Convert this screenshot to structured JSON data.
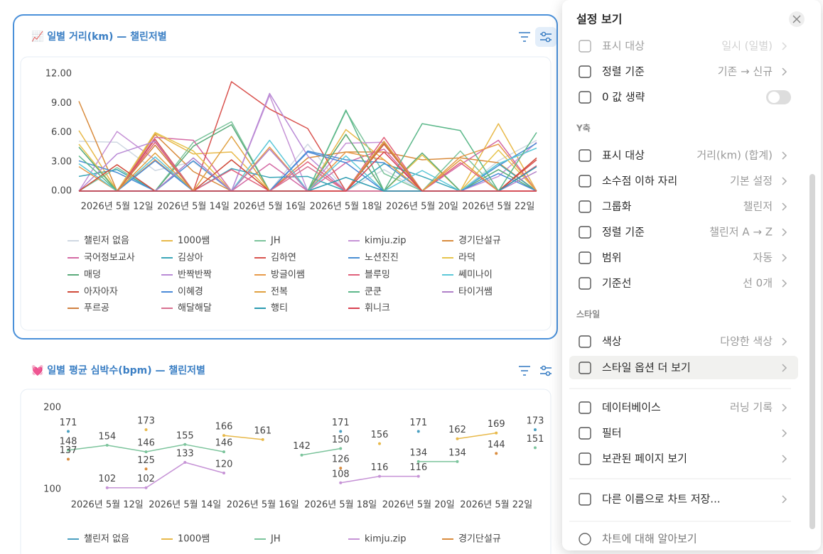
{
  "chart_data": [
    {
      "type": "line",
      "title": "📈 일별 거리(km) — 챌린저별",
      "categories": [
        null,
        "2026년 5월 12일",
        null,
        "2026년 5월 14일",
        null,
        "2026년 5월 16일",
        null,
        "2026년 5월 18일",
        null,
        "2026년 5월 20일",
        null,
        "2026년 5월 22일",
        null
      ],
      "ylim": [
        0,
        12
      ],
      "yticks": [
        {
          "value": 0,
          "label": "0.00"
        },
        {
          "value": 3,
          "label": "3.00"
        },
        {
          "value": 6,
          "label": "6.00"
        },
        {
          "value": 9,
          "label": "9.00"
        },
        {
          "value": 12,
          "label": "12.00"
        }
      ],
      "series": [
        {
          "name": "챌린저 없음",
          "color": "#cfd8e2",
          "values": [
            5.1,
            5.0,
            2.1,
            3.0,
            0,
            0,
            4.8,
            0,
            2.2,
            0,
            0,
            3.1,
            5.2
          ]
        },
        {
          "name": "1000쌤",
          "color": "#e8b94a",
          "values": [
            6.2,
            0,
            5.9,
            3.8,
            4.0,
            0,
            0,
            6.3,
            3.2,
            0,
            0,
            6.9,
            0
          ]
        },
        {
          "name": "JH",
          "color": "#7cc49c",
          "values": [
            0,
            2.4,
            0,
            5.0,
            7.1,
            0,
            0,
            8.2,
            1.8,
            0,
            4.1,
            0,
            0
          ]
        },
        {
          "name": "kimju.zip",
          "color": "#c693d6",
          "values": [
            0,
            6.1,
            3.2,
            0,
            0,
            9.8,
            0,
            4.9,
            5.0,
            0,
            0,
            1.5,
            5.0
          ]
        },
        {
          "name": "경기단설규",
          "color": "#d98c3e",
          "values": [
            9.2,
            0,
            5.8,
            2.0,
            0,
            0,
            3.4,
            4.0,
            4.0,
            3.2,
            3.4,
            2.9,
            0
          ]
        },
        {
          "name": "국어정보교사",
          "color": "#d46aa4",
          "values": [
            0,
            0,
            5.5,
            5.2,
            0,
            2.8,
            0,
            2.9,
            4.3,
            0,
            2.7,
            5.2,
            0
          ]
        },
        {
          "name": "김상아",
          "color": "#3aa6b8",
          "values": [
            1.5,
            2.2,
            0,
            0,
            2.3,
            1.4,
            1.5,
            0,
            2.8,
            1.5,
            0,
            2.8,
            0
          ]
        },
        {
          "name": "김하연",
          "color": "#d9534f",
          "values": [
            0,
            0,
            5.3,
            0,
            11.2,
            8.4,
            6.4,
            0,
            0,
            0,
            0,
            0,
            3.2
          ]
        },
        {
          "name": "노션진진",
          "color": "#4a8fd4",
          "values": [
            3.1,
            1.9,
            0,
            3.1,
            0,
            0,
            4.1,
            3.2,
            2.9,
            0,
            0,
            2.6,
            4.9
          ]
        },
        {
          "name": "라덕",
          "color": "#e6c44c",
          "values": [
            4.8,
            0,
            6.0,
            4.1,
            0,
            0,
            0,
            5.8,
            0,
            3.7,
            0,
            4.2,
            0
          ]
        },
        {
          "name": "매덩",
          "color": "#5aab7a",
          "values": [
            4.5,
            0,
            0,
            4.6,
            6.8,
            0,
            0,
            5.8,
            0,
            3.9,
            0,
            2.2,
            0
          ]
        },
        {
          "name": "반짝반짝",
          "color": "#b98ad6",
          "values": [
            0,
            3.8,
            5.1,
            0,
            0,
            10.0,
            3.6,
            0,
            4.8,
            0,
            0,
            0,
            0
          ]
        },
        {
          "name": "방글이쌤",
          "color": "#e89a4a",
          "values": [
            2.5,
            0,
            3.2,
            0,
            0,
            4.5,
            0,
            4.0,
            3.2,
            0,
            3.5,
            4.8,
            0
          ]
        },
        {
          "name": "블루밍",
          "color": "#e0607a",
          "values": [
            0,
            0,
            5.0,
            0,
            2.2,
            0,
            3.0,
            0,
            5.5,
            0,
            2.9,
            0,
            2.6
          ]
        },
        {
          "name": "쎄미나이",
          "color": "#5cc8d8",
          "values": [
            2.8,
            0,
            3.5,
            0,
            0,
            5.2,
            0,
            3.6,
            0,
            2.1,
            0,
            2.8,
            4.4
          ]
        },
        {
          "name": "아자아자",
          "color": "#d04a3a",
          "values": [
            0,
            2.7,
            0,
            0,
            3.2,
            0,
            0,
            0,
            4.8,
            0,
            0,
            0,
            3.4
          ]
        },
        {
          "name": "이혜경",
          "color": "#4a8ad8",
          "values": [
            0,
            0,
            3.1,
            0,
            0,
            0,
            4.0,
            2.9,
            0,
            0,
            0,
            1.8,
            0
          ]
        },
        {
          "name": "전복",
          "color": "#e0a040",
          "values": [
            0,
            0,
            3.9,
            0,
            5.6,
            0,
            0,
            0,
            5.1,
            0,
            3.2,
            0,
            0
          ]
        },
        {
          "name": "쿤쿤",
          "color": "#5cb88a",
          "values": [
            3.6,
            0,
            0,
            0,
            0,
            0,
            0,
            8.3,
            0,
            6.9,
            6.2,
            0,
            6.0
          ]
        },
        {
          "name": "타이거쌤",
          "color": "#b080c8",
          "values": [
            0,
            0,
            0,
            3.4,
            0,
            4.3,
            0,
            0,
            0,
            0,
            0,
            0,
            2.0
          ]
        },
        {
          "name": "푸르공",
          "color": "#d08040",
          "values": [
            0,
            0,
            4.7,
            0,
            0,
            0,
            0,
            0,
            4.9,
            0,
            0,
            0,
            0
          ]
        },
        {
          "name": "해달해달",
          "color": "#d87090",
          "values": [
            0,
            0,
            0,
            0,
            0,
            0,
            2.5,
            0,
            0,
            0,
            0,
            0,
            0
          ]
        },
        {
          "name": "행티",
          "color": "#2a9ab0",
          "values": [
            0,
            0,
            0,
            0,
            0,
            0,
            0,
            1.4,
            0,
            0,
            0,
            0,
            2.5
          ]
        },
        {
          "name": "휘니크",
          "color": "#d84050",
          "values": [
            0,
            0,
            0,
            0,
            0,
            0,
            0,
            0,
            4.0,
            0,
            0,
            0,
            0
          ]
        }
      ]
    },
    {
      "type": "line",
      "title": "💓 일별 평균 심박수(bpm) — 챌린저별",
      "categories": [
        null,
        "2026년 5월 12일",
        null,
        "2026년 5월 14일",
        null,
        "2026년 5월 16일",
        null,
        "2026년 5월 18일",
        null,
        "2026년 5월 20일",
        null,
        "2026년 5월 22일",
        null
      ],
      "ylim": [
        100,
        200
      ],
      "yticks": [
        100,
        200
      ],
      "data_labels": true,
      "series": [
        {
          "name": "챌린저 없음",
          "color": "#4a9fc0",
          "values": [
            171,
            null,
            null,
            null,
            null,
            null,
            null,
            171,
            null,
            171,
            null,
            null,
            173
          ]
        },
        {
          "name": "1000쌤",
          "color": "#e8b94a",
          "values": [
            null,
            null,
            173,
            null,
            166,
            161,
            null,
            null,
            156,
            null,
            162,
            169,
            null
          ]
        },
        {
          "name": "JH",
          "color": "#7cc49c",
          "values": [
            148,
            154,
            146,
            155,
            146,
            null,
            142,
            150,
            null,
            134,
            134,
            null,
            151
          ]
        },
        {
          "name": "kimju.zip",
          "color": "#c693d6",
          "values": [
            null,
            102,
            102,
            133,
            120,
            null,
            null,
            108,
            116,
            116,
            null,
            null,
            null
          ]
        },
        {
          "name": "경기단설규",
          "color": "#d98c3e",
          "values": [
            137,
            null,
            125,
            null,
            null,
            null,
            null,
            126,
            null,
            null,
            null,
            144,
            null
          ]
        }
      ]
    }
  ],
  "settings_panel": {
    "title": "설정 보기",
    "x_rows": [
      {
        "label": "표시 대상",
        "value": "일시 (일별)"
      },
      {
        "label": "정렬 기준",
        "value": "기존 → 신규"
      },
      {
        "label": "0 값 생략"
      }
    ],
    "y_heading": "Y축",
    "y_rows": [
      {
        "label": "표시 대상",
        "value": "거리(km) (합계)"
      },
      {
        "label": "소수점 이하 자리",
        "value": "기본 설정"
      },
      {
        "label": "그룹화",
        "value": "챌린저"
      },
      {
        "label": "정렬 기준",
        "value": "챌린저 A → Z"
      },
      {
        "label": "범위",
        "value": "자동"
      },
      {
        "label": "기준선",
        "value": "선 0개"
      }
    ],
    "style_heading": "스타일",
    "style_rows": [
      {
        "label": "색상",
        "value": "다양한 색상"
      },
      {
        "label": "스타일 옵션 더 보기"
      }
    ],
    "bottom_rows": [
      {
        "label": "데이터베이스",
        "value": "러닝 기록"
      },
      {
        "label": "필터"
      },
      {
        "label": "보관된 페이지 보기"
      },
      {
        "label": "다른 이름으로 차트 저장..."
      }
    ],
    "help": "차트에 대해 알아보기"
  }
}
